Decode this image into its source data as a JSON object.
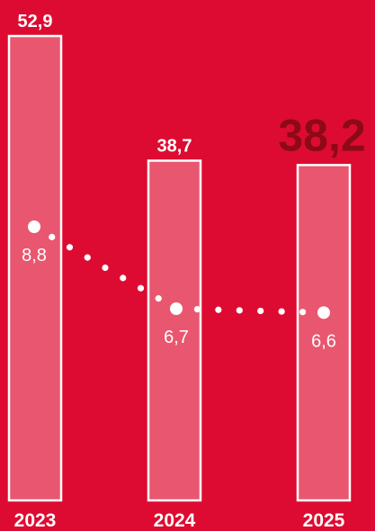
{
  "chart_data": {
    "type": "bar",
    "categories": [
      "2023",
      "2024",
      "2025"
    ],
    "series": [
      {
        "type": "bar",
        "values": [
          52.9,
          38.7,
          38.2
        ],
        "labels": [
          "52,9",
          "38,7",
          "38,2"
        ],
        "highlight_index": 2
      },
      {
        "type": "line",
        "style": "dotted",
        "values": [
          8.8,
          6.7,
          6.6
        ],
        "labels": [
          "8,8",
          "6,7",
          "6,6"
        ]
      }
    ],
    "title": "",
    "xlabel": "",
    "ylabel": "",
    "grid": false,
    "colors": {
      "background": "#dd0b31",
      "bar_fill": "#e8576f",
      "bar_stroke": "#ffffff",
      "text": "#ffffff",
      "highlight_text": "#8c0a17"
    }
  }
}
